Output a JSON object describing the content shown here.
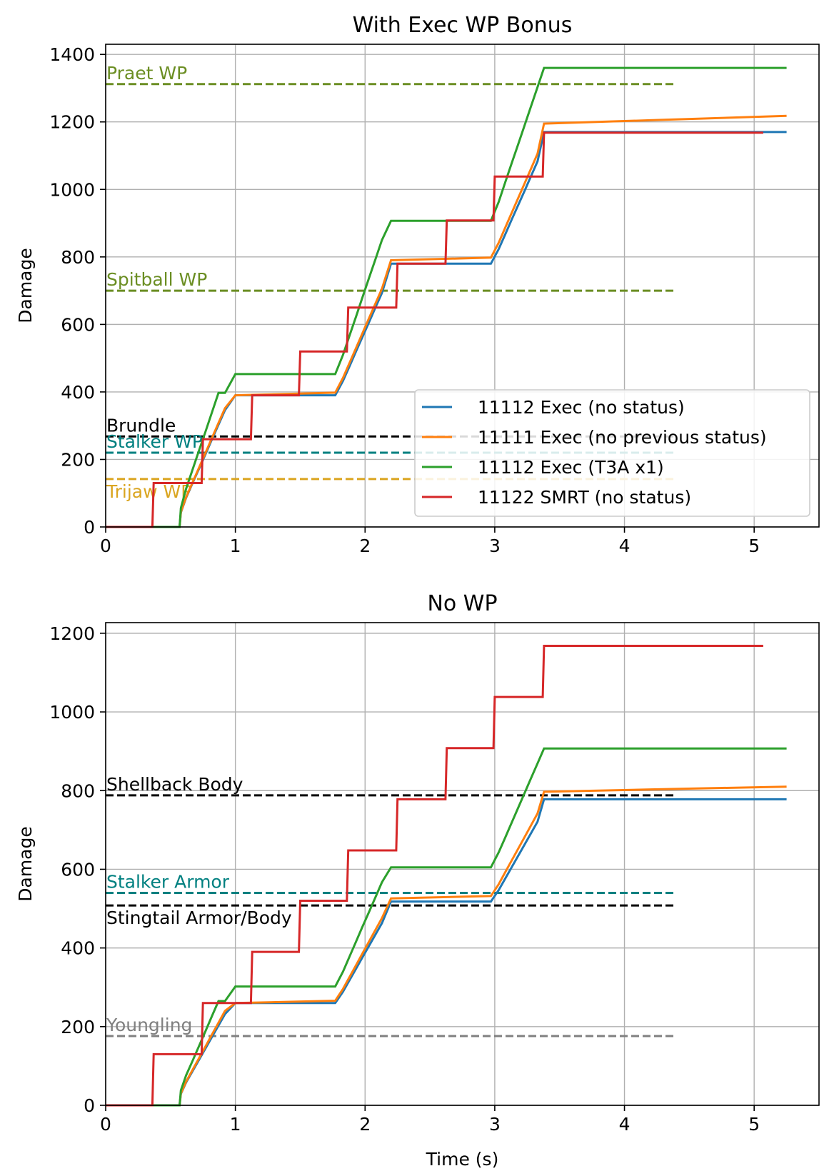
{
  "chart_data": [
    {
      "type": "line",
      "title": "With Exec WP Bonus",
      "xlabel": "",
      "ylabel": "Damage",
      "xlim": [
        0,
        5.5
      ],
      "ylim": [
        0,
        1430
      ],
      "xticks": [
        0,
        1,
        2,
        3,
        4,
        5
      ],
      "yticks": [
        0,
        200,
        400,
        600,
        800,
        1000,
        1200,
        1400
      ],
      "grid": true,
      "legend_position": "lower-right",
      "series": [
        {
          "name": "11112 Exec (no status)",
          "color": "#1f77b4",
          "x": [
            0,
            0.57,
            0.58,
            0.62,
            0.67,
            0.72,
            0.77,
            0.82,
            0.87,
            0.92,
            1.0,
            1.77,
            1.83,
            1.88,
            1.93,
            1.98,
            2.03,
            2.08,
            2.13,
            2.2,
            2.97,
            3.03,
            3.08,
            3.13,
            3.18,
            3.23,
            3.28,
            3.33,
            3.38,
            5.25
          ],
          "y": [
            0,
            0,
            43,
            86,
            130,
            173,
            216,
            260,
            303,
            346,
            390,
            390,
            433,
            476,
            520,
            563,
            606,
            650,
            693,
            780,
            780,
            823,
            866,
            910,
            953,
            996,
            1040,
            1083,
            1170,
            1170
          ]
        },
        {
          "name": "11111 Exec (no previous status)",
          "color": "#ff7f0e",
          "x": [
            0,
            0.57,
            0.58,
            0.62,
            0.67,
            0.72,
            0.77,
            0.82,
            0.87,
            0.92,
            1.0,
            1.77,
            1.83,
            1.88,
            1.93,
            1.98,
            2.03,
            2.08,
            2.13,
            2.2,
            2.97,
            3.03,
            3.08,
            3.13,
            3.18,
            3.23,
            3.28,
            3.33,
            3.38,
            4.2,
            5.25
          ],
          "y": [
            0,
            0,
            44,
            88,
            132,
            176,
            220,
            264,
            308,
            352,
            390,
            398,
            442,
            486,
            530,
            574,
            618,
            662,
            706,
            790,
            798,
            842,
            886,
            930,
            974,
            1018,
            1062,
            1106,
            1195,
            1205,
            1218
          ]
        },
        {
          "name": "11112 Exec (T3A x1)",
          "color": "#2ca02c",
          "x": [
            0,
            0.57,
            0.58,
            0.62,
            0.67,
            0.72,
            0.77,
            0.82,
            0.87,
            0.92,
            1.0,
            1.77,
            1.83,
            1.88,
            1.93,
            1.98,
            2.03,
            2.08,
            2.13,
            2.2,
            2.97,
            3.03,
            3.08,
            3.13,
            3.18,
            3.23,
            3.28,
            3.33,
            3.38,
            5.25
          ],
          "y": [
            0,
            0,
            56,
            113,
            170,
            227,
            283,
            340,
            397,
            397,
            453,
            453,
            510,
            567,
            623,
            680,
            737,
            793,
            850,
            907,
            907,
            963,
            1020,
            1077,
            1133,
            1190,
            1247,
            1303,
            1360,
            1360
          ]
        },
        {
          "name": "11122 SMRT (no status)",
          "color": "#d62728",
          "x": [
            0,
            0.36,
            0.37,
            0.74,
            0.75,
            1.12,
            1.13,
            1.49,
            1.5,
            1.86,
            1.87,
            2.24,
            2.25,
            2.62,
            2.63,
            2.99,
            3.0,
            3.37,
            3.38,
            5.07
          ],
          "y": [
            0,
            0,
            130,
            130,
            260,
            260,
            390,
            390,
            520,
            520,
            650,
            650,
            780,
            780,
            908,
            908,
            1038,
            1038,
            1168,
            1168
          ]
        }
      ],
      "references": [
        {
          "label": "Praet WP",
          "y": 1312,
          "color": "#6b8e23"
        },
        {
          "label": "Spitball WP",
          "y": 700,
          "color": "#6b8e23"
        },
        {
          "label": "Brundle",
          "y": 268,
          "color": "#000000"
        },
        {
          "label": "Stalker WP",
          "y": 220,
          "color": "#008080"
        },
        {
          "label": "Trijaw WP",
          "y": 142,
          "color": "#daa520"
        }
      ]
    },
    {
      "type": "line",
      "title": "No WP",
      "xlabel": "Time (s)",
      "ylabel": "Damage",
      "xlim": [
        0,
        5.5
      ],
      "ylim": [
        0,
        1227
      ],
      "xticks": [
        0,
        1,
        2,
        3,
        4,
        5
      ],
      "yticks": [
        0,
        200,
        400,
        600,
        800,
        1000,
        1200
      ],
      "grid": true,
      "series": [
        {
          "name": "11112 Exec (no status)",
          "color": "#1f77b4",
          "x": [
            0,
            0.57,
            0.58,
            0.62,
            0.67,
            0.72,
            0.77,
            0.82,
            0.87,
            0.92,
            1.0,
            1.77,
            1.83,
            1.88,
            1.93,
            1.98,
            2.03,
            2.08,
            2.13,
            2.2,
            2.97,
            3.03,
            3.08,
            3.13,
            3.18,
            3.23,
            3.28,
            3.33,
            3.38,
            5.25
          ],
          "y": [
            0,
            0,
            29,
            58,
            87,
            116,
            145,
            174,
            203,
            232,
            260,
            260,
            289,
            318,
            347,
            376,
            405,
            434,
            463,
            518,
            518,
            547,
            576,
            605,
            634,
            663,
            692,
            721,
            778,
            778
          ]
        },
        {
          "name": "11111 Exec (no previous status)",
          "color": "#ff7f0e",
          "x": [
            0,
            0.57,
            0.58,
            0.62,
            0.67,
            0.72,
            0.77,
            0.82,
            0.87,
            0.92,
            1.0,
            1.77,
            1.83,
            1.88,
            1.93,
            1.98,
            2.03,
            2.08,
            2.13,
            2.2,
            2.97,
            3.03,
            3.08,
            3.13,
            3.18,
            3.23,
            3.28,
            3.33,
            3.38,
            4.2,
            5.25
          ],
          "y": [
            0,
            0,
            30,
            60,
            90,
            120,
            150,
            180,
            210,
            240,
            260,
            266,
            296,
            326,
            356,
            386,
            416,
            446,
            476,
            526,
            532,
            562,
            592,
            622,
            652,
            682,
            712,
            742,
            797,
            803,
            810
          ]
        },
        {
          "name": "11112 Exec (T3A x1)",
          "color": "#2ca02c",
          "x": [
            0,
            0.57,
            0.58,
            0.62,
            0.67,
            0.72,
            0.77,
            0.82,
            0.87,
            0.92,
            1.0,
            1.77,
            1.83,
            1.88,
            1.93,
            1.98,
            2.03,
            2.08,
            2.13,
            2.2,
            2.97,
            3.03,
            3.08,
            3.13,
            3.18,
            3.23,
            3.28,
            3.33,
            3.38,
            5.25
          ],
          "y": [
            0,
            0,
            38,
            76,
            113,
            151,
            189,
            227,
            265,
            265,
            302,
            302,
            340,
            378,
            416,
            454,
            491,
            529,
            567,
            605,
            605,
            643,
            680,
            718,
            756,
            794,
            832,
            869,
            907,
            907
          ]
        },
        {
          "name": "11122 SMRT (no status)",
          "color": "#d62728",
          "x": [
            0,
            0.36,
            0.37,
            0.74,
            0.75,
            1.12,
            1.13,
            1.49,
            1.5,
            1.86,
            1.87,
            2.24,
            2.25,
            2.62,
            2.63,
            2.99,
            3.0,
            3.37,
            3.38,
            5.07
          ],
          "y": [
            0,
            0,
            130,
            130,
            260,
            260,
            390,
            390,
            520,
            520,
            648,
            648,
            778,
            778,
            908,
            908,
            1038,
            1038,
            1168,
            1168
          ]
        }
      ],
      "references": [
        {
          "label": "Shellback Body",
          "y": 788,
          "color": "#000000"
        },
        {
          "label": "Stalker Armor",
          "y": 540,
          "color": "#008080"
        },
        {
          "label": "Stingtail Armor/Body",
          "y": 508,
          "color": "#000000"
        },
        {
          "label": "Youngling",
          "y": 176,
          "color": "#808080"
        }
      ]
    }
  ]
}
